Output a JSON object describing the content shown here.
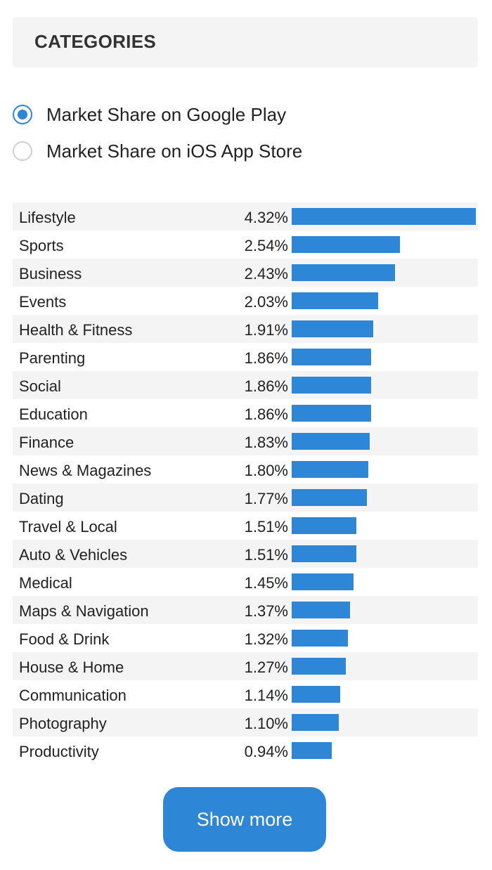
{
  "header": {
    "title": "CATEGORIES"
  },
  "filters": {
    "options": [
      {
        "label": "Market Share on Google Play",
        "selected": true
      },
      {
        "label": "Market Share on iOS App Store",
        "selected": false
      }
    ]
  },
  "categories": {
    "max_value": 4.32,
    "rows": [
      {
        "name": "Lifestyle",
        "value": 4.32,
        "label": "4.32%"
      },
      {
        "name": "Sports",
        "value": 2.54,
        "label": "2.54%"
      },
      {
        "name": "Business",
        "value": 2.43,
        "label": "2.43%"
      },
      {
        "name": "Events",
        "value": 2.03,
        "label": "2.03%"
      },
      {
        "name": "Health & Fitness",
        "value": 1.91,
        "label": "1.91%"
      },
      {
        "name": "Parenting",
        "value": 1.86,
        "label": "1.86%"
      },
      {
        "name": "Social",
        "value": 1.86,
        "label": "1.86%"
      },
      {
        "name": "Education",
        "value": 1.86,
        "label": "1.86%"
      },
      {
        "name": "Finance",
        "value": 1.83,
        "label": "1.83%"
      },
      {
        "name": "News & Magazines",
        "value": 1.8,
        "label": "1.80%"
      },
      {
        "name": "Dating",
        "value": 1.77,
        "label": "1.77%"
      },
      {
        "name": "Travel & Local",
        "value": 1.51,
        "label": "1.51%"
      },
      {
        "name": "Auto & Vehicles",
        "value": 1.51,
        "label": "1.51%"
      },
      {
        "name": "Medical",
        "value": 1.45,
        "label": "1.45%"
      },
      {
        "name": "Maps & Navigation",
        "value": 1.37,
        "label": "1.37%"
      },
      {
        "name": "Food & Drink",
        "value": 1.32,
        "label": "1.32%"
      },
      {
        "name": "House & Home",
        "value": 1.27,
        "label": "1.27%"
      },
      {
        "name": "Communication",
        "value": 1.14,
        "label": "1.14%"
      },
      {
        "name": "Photography",
        "value": 1.1,
        "label": "1.10%"
      },
      {
        "name": "Productivity",
        "value": 0.94,
        "label": "0.94%"
      }
    ]
  },
  "show_more": {
    "label": "Show more"
  },
  "colors": {
    "accent": "#2e86d6",
    "header_bg": "#f4f4f4",
    "stripe_bg": "#f4f4f4",
    "text": "#222222"
  }
}
